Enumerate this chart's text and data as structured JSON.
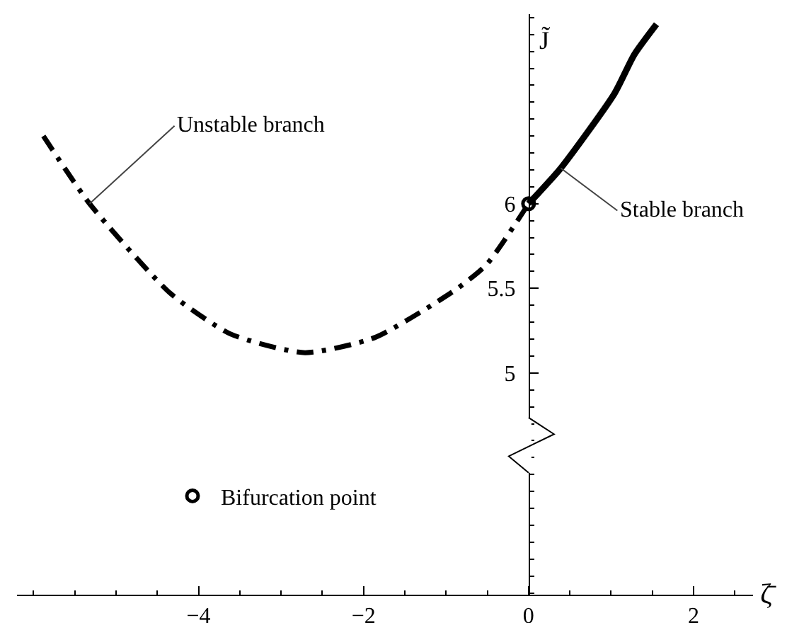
{
  "chart_data": {
    "type": "line",
    "xlabel": "ζ̄",
    "ylabel": "J̃",
    "xlim": [
      -6.2,
      2.72
    ],
    "ylim": [
      3.69,
      7.12
    ],
    "xticks": [
      {
        "value": -4,
        "label": "−4"
      },
      {
        "value": -2,
        "label": "−2"
      },
      0,
      2
    ],
    "yticks": [
      5,
      5.5,
      6
    ],
    "grid": false,
    "legend": "bottom left",
    "series": [
      {
        "name": "Unstable branch",
        "color": "#000000",
        "line_style": "dashed",
        "x": [
          -5.88,
          -5.32,
          -4.34,
          -3.61,
          -2.71,
          -1.86,
          -0.89,
          -0.51,
          0
        ],
        "values": [
          6.4,
          6.0,
          5.47,
          5.23,
          5.12,
          5.21,
          5.49,
          5.64,
          6.0
        ]
      },
      {
        "name": "Stable branch",
        "color": "#000000",
        "line_style": "solid",
        "x": [
          0,
          0.39,
          1.04,
          1.28,
          1.55
        ],
        "values": [
          6.0,
          6.21,
          6.65,
          6.88,
          7.06
        ]
      },
      {
        "name": "Bifurcation point",
        "type": "scatter",
        "marker": "circle",
        "color": "#000000",
        "x": [
          0
        ],
        "values": [
          6.0
        ]
      }
    ]
  }
}
